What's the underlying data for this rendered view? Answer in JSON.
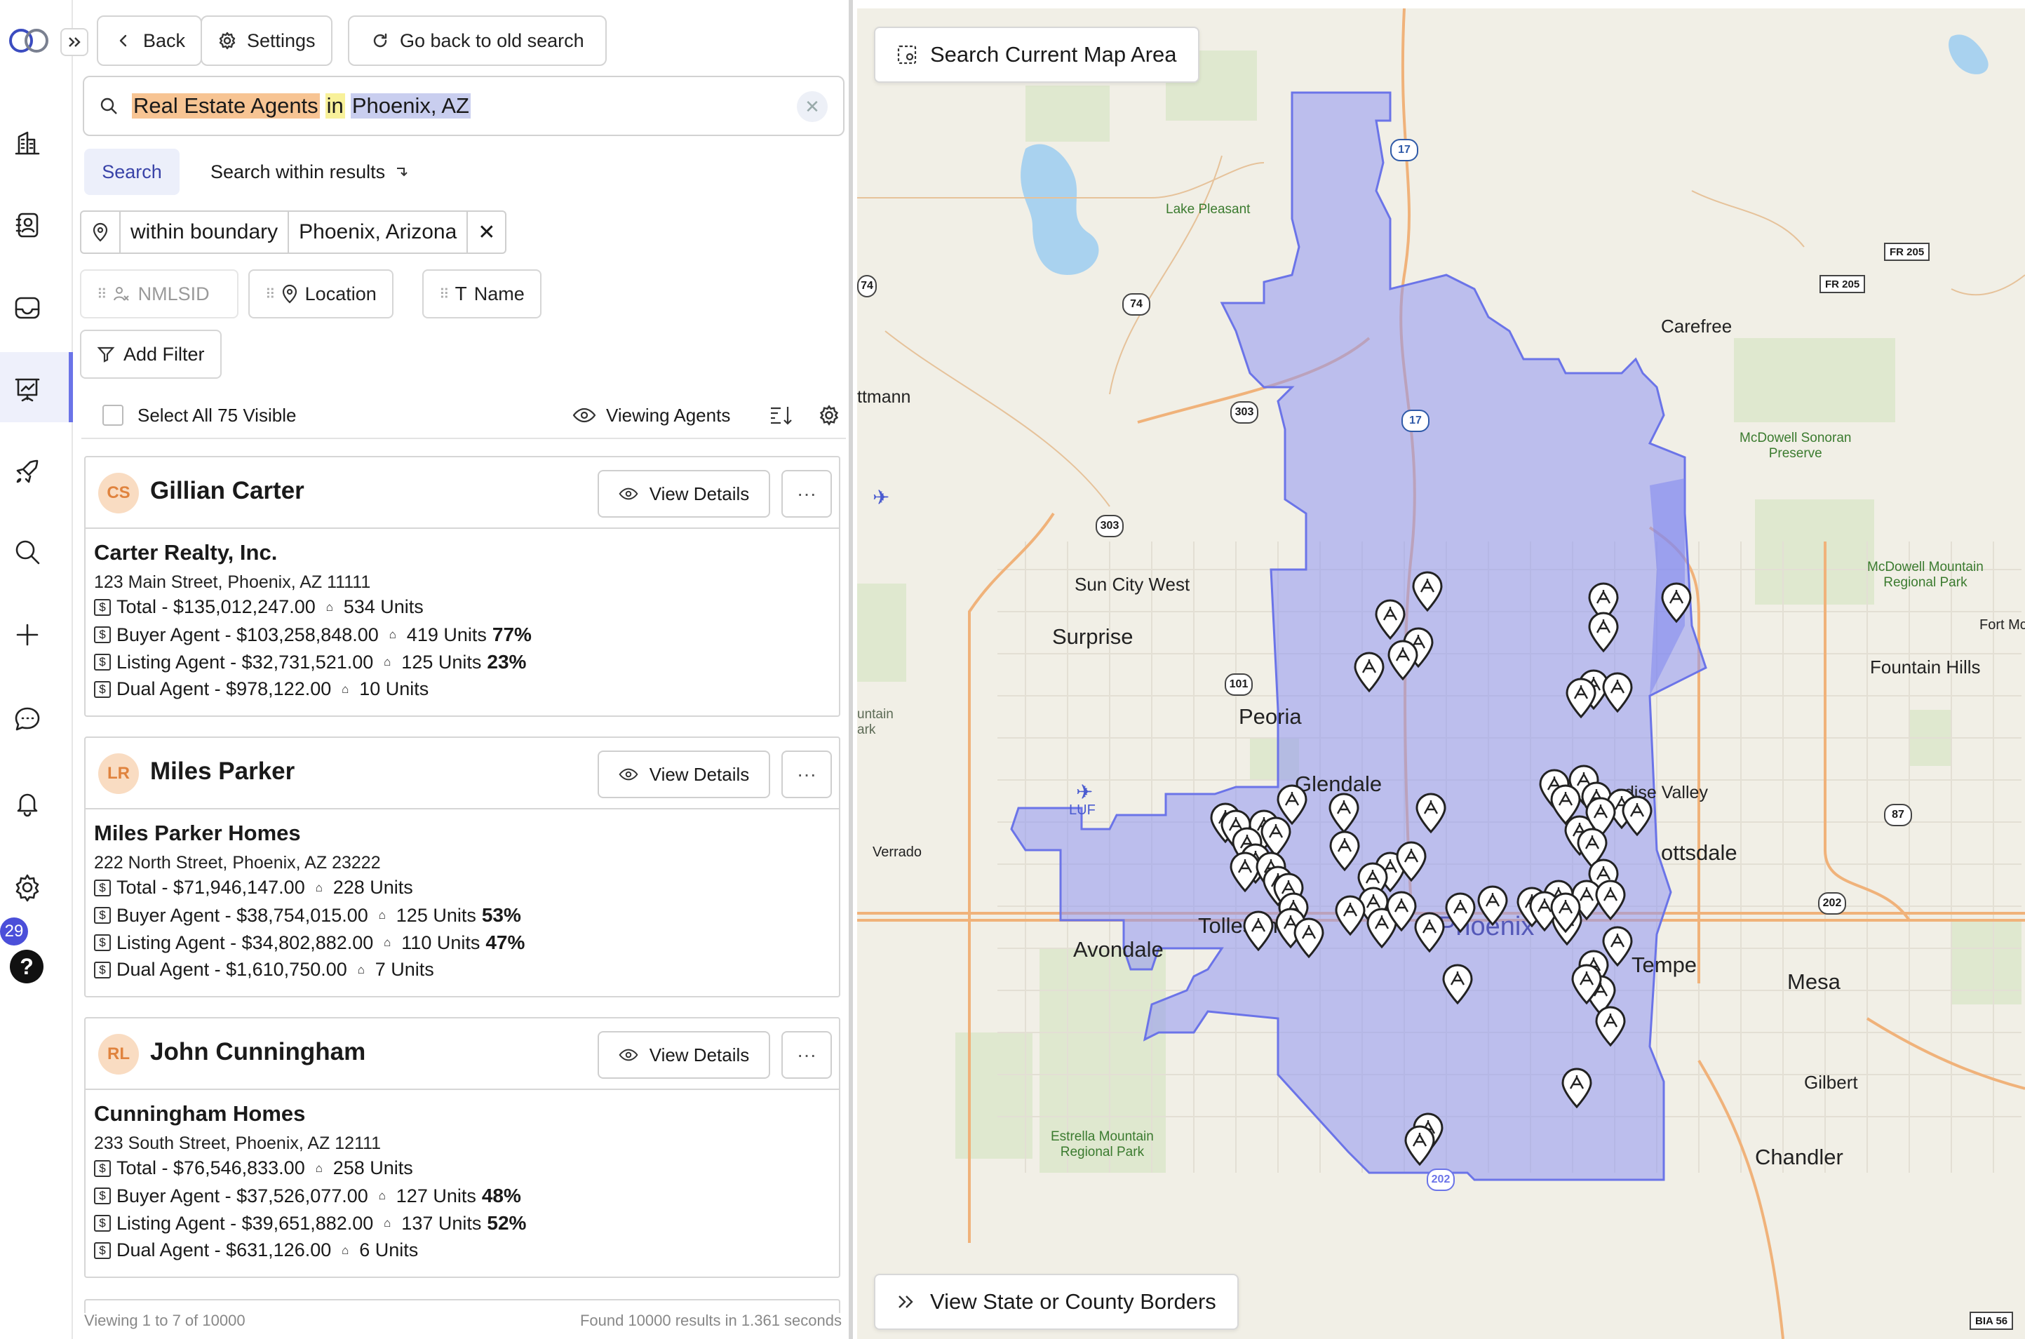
{
  "rail": {
    "items": [
      "buildings-icon",
      "contacts-icon",
      "inbox-icon",
      "presentation-icon",
      "rocket-icon",
      "search-icon",
      "plus-icon",
      "chat-icon",
      "bell-icon",
      "gear-icon"
    ],
    "notification_count": "29",
    "help_label": "?"
  },
  "toolbar": {
    "back_label": "Back",
    "settings_label": "Settings",
    "old_search_label": "Go back to old search"
  },
  "search": {
    "query_parts": [
      "Real Estate Agents",
      "in",
      "Phoenix, AZ"
    ],
    "tab_search": "Search",
    "tab_within": "Search within results"
  },
  "boundary": {
    "type_label": "within boundary",
    "place_label": "Phoenix, Arizona",
    "remove_label": "✕"
  },
  "chips": {
    "nmlsid": "NMLSID",
    "location": "Location",
    "name": "Name"
  },
  "add_filter_label": "Add Filter",
  "select_all_label": "Select All 75 Visible",
  "viewing_label": "Viewing Agents",
  "view_details_label": "View Details",
  "more_label": "···",
  "agents": [
    {
      "initials": "CS",
      "name": "Gillian Carter",
      "company": "Carter Realty, Inc.",
      "address": "123 Main Street, Phoenix, AZ 11111",
      "total": "Total - $135,012,247.00",
      "total_units": "534 Units",
      "buyer": "Buyer Agent - $103,258,848.00",
      "buyer_units": "419 Units",
      "buyer_pct": "77%",
      "listing": "Listing Agent - $32,731,521.00",
      "listing_units": "125 Units",
      "listing_pct": "23%",
      "dual": "Dual Agent - $978,122.00",
      "dual_units": "10 Units"
    },
    {
      "initials": "LR",
      "name": "Miles Parker",
      "company": "Miles Parker Homes",
      "address": "222 North Street, Phoenix, AZ 23222",
      "total": "Total - $71,946,147.00",
      "total_units": "228 Units",
      "buyer": "Buyer Agent - $38,754,015.00",
      "buyer_units": "125 Units",
      "buyer_pct": "53%",
      "listing": "Listing Agent - $34,802,882.00",
      "listing_units": "110 Units",
      "listing_pct": "47%",
      "dual": "Dual Agent - $1,610,750.00",
      "dual_units": "7 Units"
    },
    {
      "initials": "RL",
      "name": "John Cunningham",
      "company": "Cunningham Homes",
      "address": "233 South Street, Phoenix, AZ 12111",
      "total": "Total - $76,546,833.00",
      "total_units": "258 Units",
      "buyer": "Buyer Agent - $37,526,077.00",
      "buyer_units": "127 Units",
      "buyer_pct": "48%",
      "listing": "Listing Agent - $39,651,882.00",
      "listing_units": "137 Units",
      "listing_pct": "52%",
      "dual": "Dual Agent - $631,126.00",
      "dual_units": "6 Units"
    }
  ],
  "footer": {
    "viewing": "Viewing 1 to 7 of 10000",
    "found": "Found 10000 results in 1.361 seconds"
  },
  "map": {
    "search_area_label": "Search Current Map Area",
    "borders_label": "View State or County Borders",
    "cities": {
      "surprise": "Surprise",
      "sun_city_west": "Sun City West",
      "peoria": "Peoria",
      "glendale": "Glendale",
      "tolleson": "Tolleson",
      "avondale": "Avondale",
      "phoenix": "Phoenix",
      "tempe": "Tempe",
      "mesa": "Mesa",
      "gilbert": "Gilbert",
      "chandler": "Chandler",
      "carefree": "Carefree",
      "scottsdale": "ottsdale",
      "paradise_valley": "adise Valley",
      "fountain_hills": "Fountain Hills",
      "fort_mc": "Fort Mc",
      "verrado": "Verrado",
      "luf": "LUF",
      "wittmann": "ttmann",
      "mountain_park": "untain\nark",
      "lake_pleasant": "Lake Pleasant",
      "mcdowell_sonoran": "McDowell Sonoran\nPreserve",
      "mcdowell_mountain": "McDowell Mountain\nRegional Park",
      "estrella": "Estrella Mountain\nRegional Park"
    },
    "shields": [
      "17",
      "17",
      "74",
      "303",
      "303",
      "101",
      "87",
      "202",
      "202",
      "74",
      "FR 205",
      "FR 205",
      "BIA 56"
    ],
    "accent_color": "#6b74e8",
    "boundary_fill": "#9aa0f2"
  }
}
